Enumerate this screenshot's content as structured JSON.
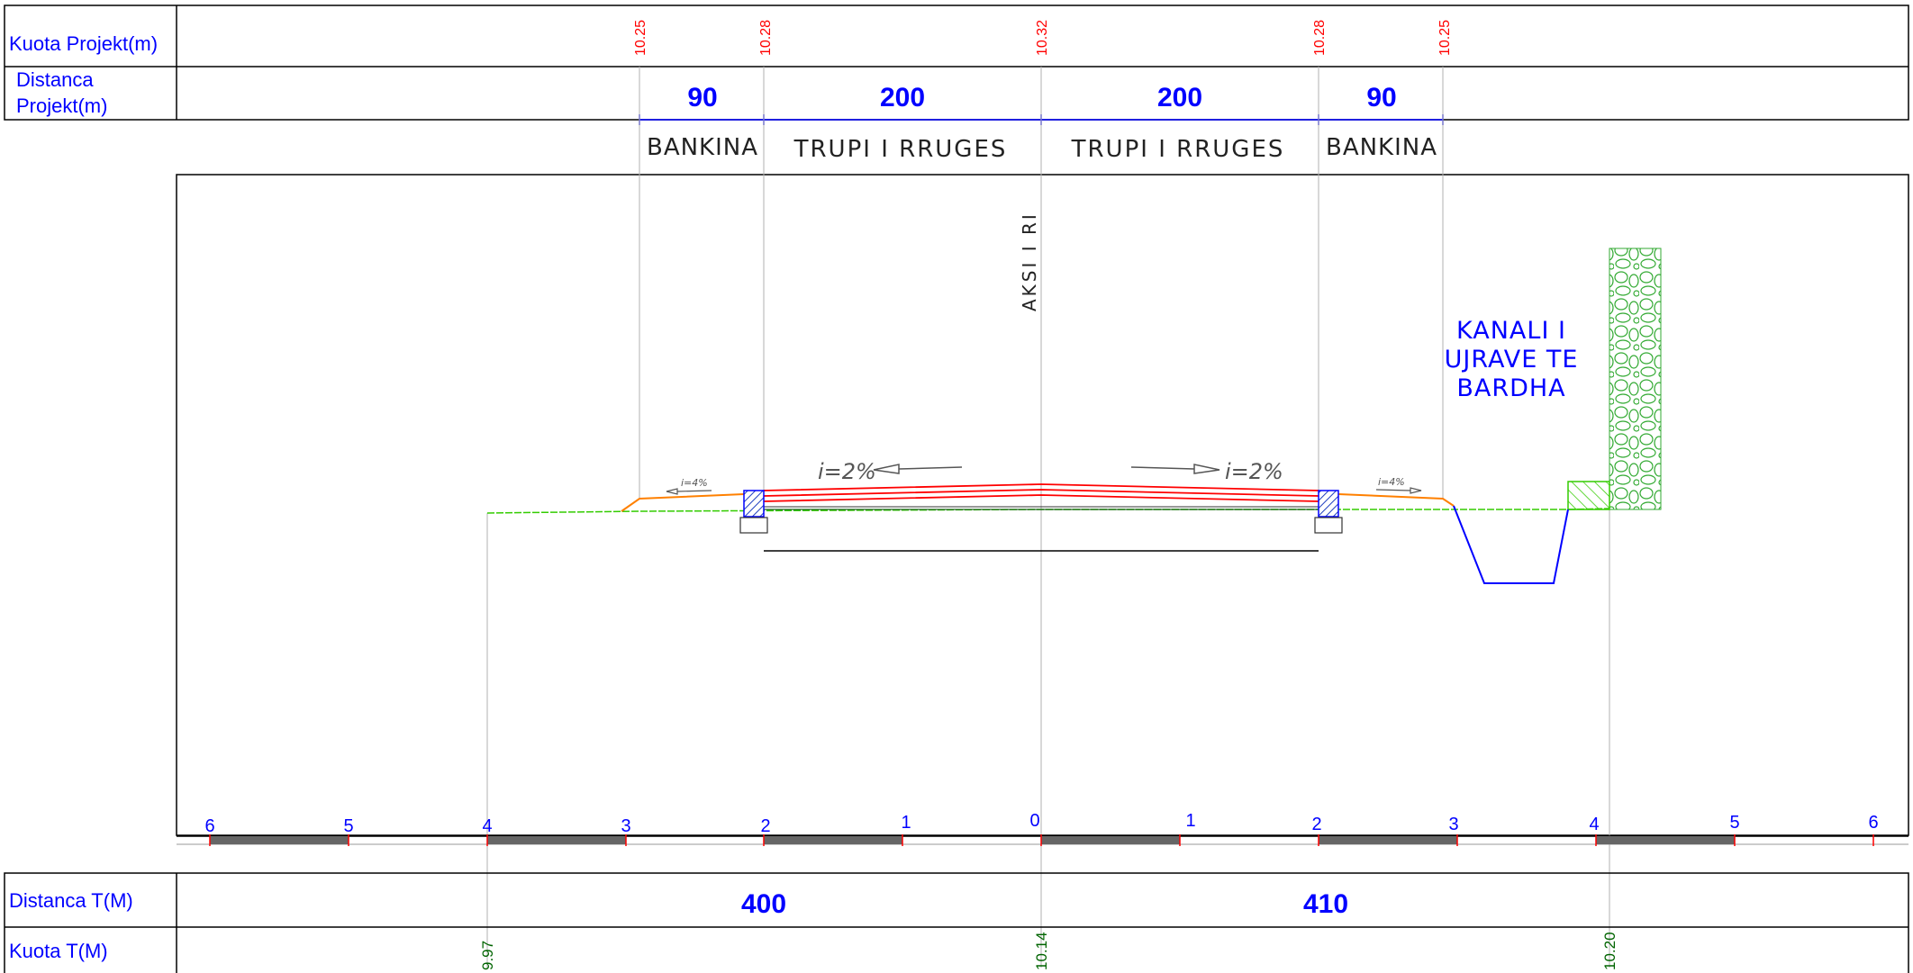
{
  "colors": {
    "frame": "#000000",
    "blue_text": "#0000ff",
    "red_text": "#ff0000",
    "green_text": "#006400",
    "road_layers": "#ff0000",
    "shoulder": "#ff8000",
    "ground": "#33cc00",
    "canal": "#0000ff",
    "guide": "#b0b0b0",
    "curb_fill": "#2040c0",
    "scale_dark": "#666666"
  },
  "rows": {
    "kuota_projekt_label": "Kuota Projekt(m)",
    "distanca_projekt_label_line1": "Distanca",
    "distanca_projekt_label_line2": "Projekt(m)",
    "distanca_t_label": "Distanca T(M)",
    "kuota_t_label": "Kuota T(M)"
  },
  "project_elevations": [
    "10.25",
    "10.28",
    "10.32",
    "10.28",
    "10.25"
  ],
  "project_distances": [
    "90",
    "200",
    "200",
    "90"
  ],
  "section_labels": [
    "BANKINA",
    "TRUPI I RRUGES",
    "TRUPI I RRUGES",
    "BANKINA"
  ],
  "axis_label": "AKSI I RI",
  "canal_label_lines": [
    "KANALI I",
    "UJRAVE TE",
    "BARDHA"
  ],
  "slopes": {
    "road_left": "i=2%",
    "road_right": "i=2%",
    "shoulder_left": "i=4%",
    "shoulder_right": "i=4%"
  },
  "scale_ticks": [
    "6",
    "5",
    "4",
    "3",
    "2",
    "1",
    "0",
    "1",
    "2",
    "3",
    "4",
    "5",
    "6"
  ],
  "terrain_distances": [
    "400",
    "410"
  ],
  "terrain_elevations": [
    "9.97",
    "10.14",
    "10.20"
  ]
}
